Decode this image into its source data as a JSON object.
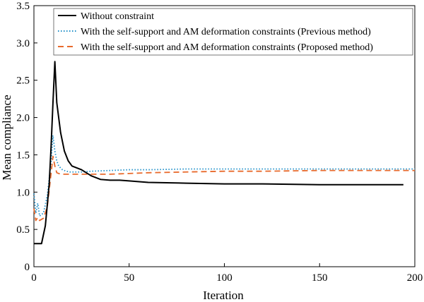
{
  "chart_data": {
    "type": "line",
    "title": "",
    "xlabel": "Iteration",
    "ylabel": "Mean compliance",
    "xlim": [
      0,
      200
    ],
    "ylim": [
      0,
      3.5
    ],
    "xticks": [
      0,
      50,
      100,
      150,
      200
    ],
    "xtick_labels": [
      "0",
      "50",
      "100",
      "150",
      "200"
    ],
    "yticks": [
      0,
      0.5,
      1.0,
      1.5,
      2.0,
      2.5,
      3.0,
      3.5
    ],
    "ytick_labels": [
      "0",
      "0.5",
      "1.0",
      "1.5",
      "2.0",
      "2.5",
      "3.0",
      "3.5"
    ],
    "grid": false,
    "legend_position": "top",
    "series": [
      {
        "name": "Without constraint",
        "color": "#000000",
        "dash": "solid",
        "x": [
          0,
          4,
          6,
          8,
          9,
          10,
          11,
          12,
          14,
          16,
          18,
          20,
          25,
          30,
          35,
          40,
          45,
          50,
          60,
          80,
          100,
          120,
          150,
          180,
          194
        ],
        "y": [
          0.31,
          0.31,
          0.55,
          1.1,
          1.6,
          2.2,
          2.75,
          2.2,
          1.8,
          1.55,
          1.42,
          1.35,
          1.3,
          1.22,
          1.17,
          1.16,
          1.16,
          1.15,
          1.13,
          1.12,
          1.11,
          1.11,
          1.1,
          1.1,
          1.1
        ]
      },
      {
        "name": "With the self-support and AM deformation constraints (Previous method)",
        "color": "#1f8fc8",
        "dash": "dotted",
        "x": [
          0,
          1,
          2,
          3,
          5,
          7,
          9,
          10,
          11,
          12,
          13,
          15,
          17,
          19,
          22,
          26,
          30,
          40,
          50,
          60,
          80,
          100,
          120,
          150,
          180,
          200
        ],
        "y": [
          0.98,
          0.72,
          0.85,
          0.68,
          0.72,
          0.95,
          1.4,
          1.76,
          1.55,
          1.42,
          1.35,
          1.3,
          1.28,
          1.27,
          1.27,
          1.27,
          1.28,
          1.29,
          1.3,
          1.3,
          1.31,
          1.31,
          1.31,
          1.31,
          1.31,
          1.31
        ]
      },
      {
        "name": "With the self-support and AM deformation constraints (Proposed method)",
        "color": "#e86a2c",
        "dash": "dashed",
        "x": [
          0,
          1,
          2,
          3,
          5,
          7,
          9,
          10,
          11,
          12,
          14,
          16,
          20,
          25,
          30,
          40,
          50,
          60,
          80,
          100,
          120,
          150,
          180,
          200
        ],
        "y": [
          0.78,
          0.62,
          0.66,
          0.62,
          0.65,
          0.8,
          1.25,
          1.48,
          1.35,
          1.26,
          1.24,
          1.24,
          1.24,
          1.24,
          1.24,
          1.24,
          1.25,
          1.26,
          1.27,
          1.28,
          1.28,
          1.29,
          1.29,
          1.29
        ]
      }
    ]
  }
}
